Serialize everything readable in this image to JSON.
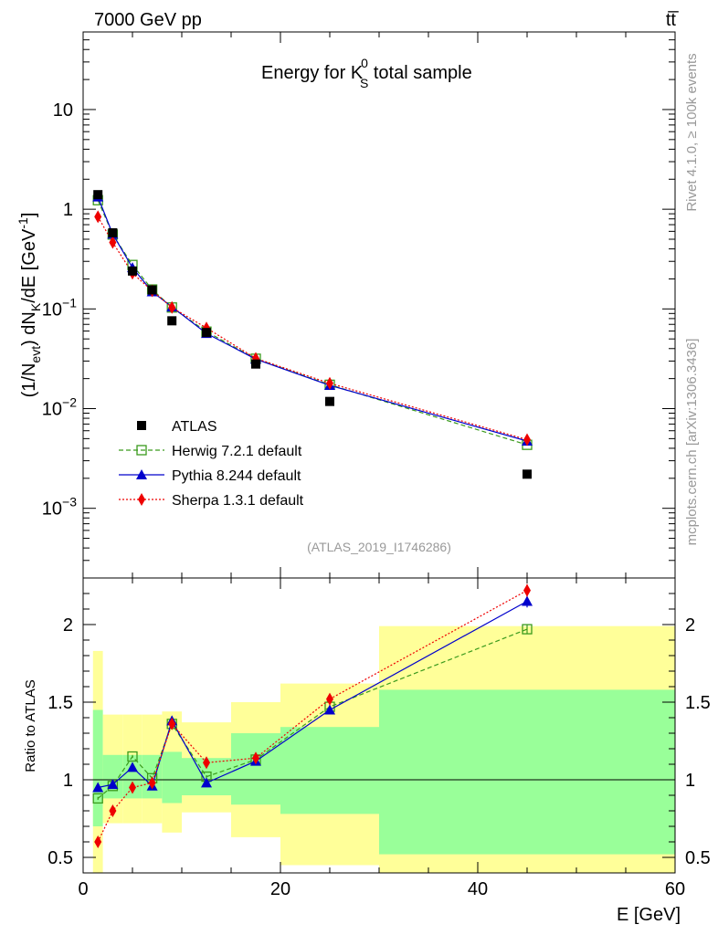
{
  "header": {
    "beam_label": "7000 GeV pp",
    "process_label": "tt̅",
    "title_main": "Energy for K",
    "title_sup": "0",
    "title_sub": "S",
    "title_rest": " total sample",
    "analysis_id": "(ATLAS_2019_I1746286)"
  },
  "side_labels": {
    "rivet": "Rivet 4.1.0, ≥ 100k events",
    "mcplots": "mcplots.cern.ch [arXiv:1306.3436]"
  },
  "axes": {
    "main_ylabel_parts": [
      "(1/N",
      "evt",
      ") dN",
      "K",
      "/dE [GeV",
      "-1",
      "]"
    ],
    "ratio_ylabel": "Ratio to ATLAS",
    "xlabel": "E [GeV]",
    "x_ticks": [
      "0",
      "20",
      "40",
      "60"
    ],
    "main_ticks": [
      {
        "base": "10",
        "exp": "",
        "value": 10
      },
      {
        "base": "1",
        "exp": "",
        "value": 1
      },
      {
        "base": "10",
        "exp": "−1",
        "value": 0.1
      },
      {
        "base": "10",
        "exp": "−2",
        "value": 0.01
      },
      {
        "base": "10",
        "exp": "−3",
        "value": 0.001
      }
    ],
    "ratio_ticks": [
      "2",
      "1.5",
      "1",
      "0.5"
    ]
  },
  "legend": [
    {
      "key": "atlas",
      "label": "ATLAS",
      "color": "#000000"
    },
    {
      "key": "herwig",
      "label": "Herwig 7.2.1 default",
      "color": "#3a9a1c"
    },
    {
      "key": "pythia",
      "label": "Pythia 8.244 default",
      "color": "#0000cc"
    },
    {
      "key": "sherpa",
      "label": "Sherpa 1.3.1 default",
      "color": "#ee0000"
    }
  ],
  "chart_data": {
    "type": "scatter",
    "title": "Energy for K0S total sample",
    "xlabel": "E [GeV]",
    "ylabel": "(1/Nevt) dNK/dE [GeV-1]",
    "xlim": [
      0,
      60
    ],
    "ylim_main": [
      0.0002,
      60
    ],
    "yscale_main": "log",
    "ylim_ratio": [
      0.4,
      2.3
    ],
    "bins": [
      [
        1,
        2
      ],
      [
        2,
        4
      ],
      [
        4,
        6
      ],
      [
        6,
        8
      ],
      [
        8,
        10
      ],
      [
        10,
        15
      ],
      [
        15,
        20
      ],
      [
        20,
        30
      ],
      [
        30,
        60
      ]
    ],
    "x": [
      1.5,
      3,
      5,
      7,
      9,
      12.5,
      17.5,
      25,
      45
    ],
    "atlas": [
      1.4,
      0.58,
      0.24,
      0.155,
      0.076,
      0.058,
      0.028,
      0.0118,
      0.0022
    ],
    "series": [
      {
        "name": "Herwig 7.2.1 default",
        "key": "herwig",
        "ratio": [
          0.88,
          0.96,
          1.15,
          1.01,
          1.36,
          1.02,
          1.13,
          1.47,
          1.97
        ],
        "ratio_err": [
          0.01,
          0.01,
          0.01,
          0.01,
          0.02,
          0.01,
          0.02,
          0.02,
          0.03
        ]
      },
      {
        "name": "Pythia 8.244 default",
        "key": "pythia",
        "ratio": [
          0.95,
          0.97,
          1.08,
          0.96,
          1.38,
          0.98,
          1.12,
          1.45,
          2.15
        ],
        "ratio_err": [
          0.01,
          0.01,
          0.01,
          0.01,
          0.03,
          0.01,
          0.02,
          0.02,
          0.04
        ]
      },
      {
        "name": "Sherpa 1.3.1 default",
        "key": "sherpa",
        "ratio": [
          0.6,
          0.8,
          0.95,
          0.98,
          1.36,
          1.11,
          1.14,
          1.52,
          2.22
        ],
        "ratio_err": [
          0.01,
          0.01,
          0.01,
          0.01,
          0.03,
          0.01,
          0.02,
          0.03,
          0.04
        ]
      }
    ],
    "band_inner": [
      [
        0.7,
        1.45
      ],
      [
        0.88,
        1.16
      ],
      [
        0.88,
        1.16
      ],
      [
        0.88,
        1.16
      ],
      [
        0.85,
        1.18
      ],
      [
        0.9,
        1.14
      ],
      [
        0.84,
        1.3
      ],
      [
        0.78,
        1.34
      ],
      [
        0.52,
        1.58
      ]
    ],
    "band_outer": [
      [
        0.4,
        1.83
      ],
      [
        0.72,
        1.42
      ],
      [
        0.72,
        1.42
      ],
      [
        0.72,
        1.42
      ],
      [
        0.66,
        1.44
      ],
      [
        0.79,
        1.37
      ],
      [
        0.63,
        1.5
      ],
      [
        0.45,
        1.62
      ],
      [
        0.4,
        1.99
      ]
    ],
    "band_colors": {
      "inner": "#99ff99",
      "outer": "#ffff99"
    }
  }
}
